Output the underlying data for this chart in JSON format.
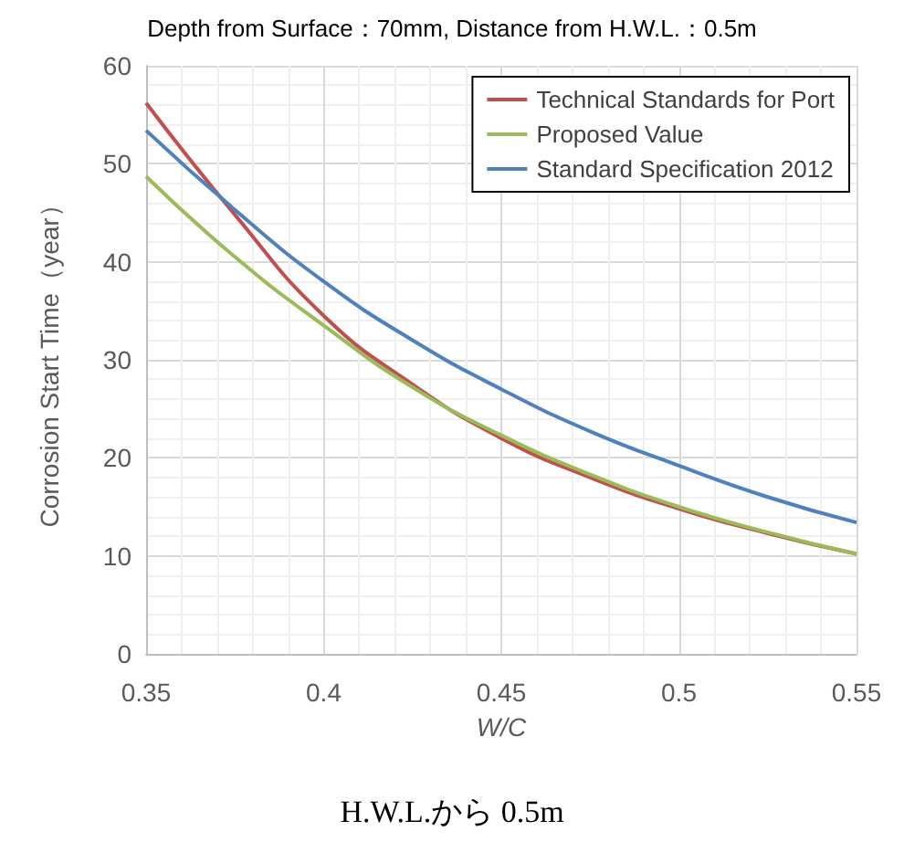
{
  "chart_data": {
    "type": "line",
    "title": "Depth from Surface：70mm, Distance from H.W.L.：0.5m",
    "xlabel": "W/C",
    "ylabel": "Corrosion Start Time（year）",
    "x": [
      0.35,
      0.375,
      0.4,
      0.425,
      0.45,
      0.475,
      0.5,
      0.525,
      0.55
    ],
    "series": [
      {
        "name": "Technical Standards for Port",
        "color": "#c0504d",
        "values": [
          56.2,
          44.8,
          34.5,
          27.5,
          22,
          18,
          14.8,
          12.3,
          10.2
        ]
      },
      {
        "name": "Proposed Value",
        "color": "#9bbb59",
        "values": [
          48.7,
          40.5,
          33.5,
          27.2,
          22.3,
          18.3,
          15,
          12.4,
          10.2
        ]
      },
      {
        "name": "Standard Specification 2012",
        "color": "#4f81bd",
        "values": [
          53.4,
          45.3,
          38,
          32,
          27,
          22.7,
          19.2,
          16,
          13.4
        ]
      }
    ],
    "xlim": [
      0.35,
      0.55
    ],
    "xticks": [
      0.35,
      0.4,
      0.45,
      0.5,
      0.55
    ],
    "ylim": [
      0,
      60
    ],
    "yticks": [
      0,
      10,
      20,
      30,
      40,
      50,
      60
    ],
    "grid": true,
    "legend": "top right",
    "marker": "none",
    "line_style": "solid",
    "annotations": [
      "H.W.L.から 0.5m"
    ]
  }
}
